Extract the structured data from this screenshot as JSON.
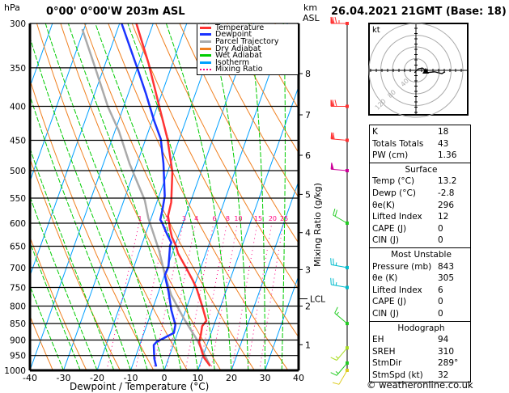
{
  "header": {
    "pressure_unit": "hPa",
    "location": "0°00' 0°00'W 203m ASL",
    "datetime": "26.04.2021 21GMT (Base: 18)",
    "km_label_1": "km",
    "km_label_2": "ASL",
    "watermark": "© weatheronline.co.uk"
  },
  "legend": [
    {
      "label": "Temperature",
      "color": "#ff3333"
    },
    {
      "label": "Dewpoint",
      "color": "#1a33ff"
    },
    {
      "label": "Parcel Trajectory",
      "color": "#aaaaaa"
    },
    {
      "label": "Dry Adiabat",
      "color": "#f08020"
    },
    {
      "label": "Wet Adiabat",
      "color": "#00cc00"
    },
    {
      "label": "Isotherm",
      "color": "#00a0ff"
    },
    {
      "label": "Mixing Ratio",
      "color": "#ff0080",
      "dotted": true
    }
  ],
  "chart_data": {
    "type": "skew-t",
    "xlabel": "Dewpoint / Temperature (°C)",
    "ylabel": "hPa",
    "xlim": [
      -40,
      40
    ],
    "ylim": [
      1000,
      300
    ],
    "x_ticks": [
      -40,
      -30,
      -20,
      -10,
      0,
      10,
      20,
      30,
      40
    ],
    "pressure_ticks": [
      300,
      350,
      400,
      450,
      500,
      550,
      600,
      650,
      700,
      750,
      800,
      850,
      900,
      950,
      1000
    ],
    "km_ticks": [
      {
        "km": "1",
        "p": 915
      },
      {
        "km": "2",
        "p": 800
      },
      {
        "km": "3",
        "p": 705
      },
      {
        "km": "4",
        "p": 620
      },
      {
        "km": "5",
        "p": 543
      },
      {
        "km": "6",
        "p": 474
      },
      {
        "km": "7",
        "p": 412
      },
      {
        "km": "8",
        "p": 357
      }
    ],
    "lcl": {
      "label": "LCL",
      "p": 780
    },
    "mixing_ratio_axis_label": "Mixing Ratio (g/kg)",
    "mixing_ratio_labels": [
      1,
      2,
      3,
      4,
      6,
      8,
      10,
      15,
      20,
      25
    ],
    "temperature": [
      [
        985,
        13.2
      ],
      [
        955,
        10.3
      ],
      [
        907,
        7.4
      ],
      [
        882,
        7.1
      ],
      [
        858,
        6.6
      ],
      [
        842,
        7.3
      ],
      [
        800,
        4.5
      ],
      [
        753,
        1.0
      ],
      [
        732,
        -1.0
      ],
      [
        701,
        -4.3
      ],
      [
        666,
        -8.3
      ],
      [
        648,
        -9.8
      ],
      [
        630,
        -11.8
      ],
      [
        610,
        -13.4
      ],
      [
        585,
        -15.2
      ],
      [
        558,
        -15.7
      ],
      [
        502,
        -18.6
      ],
      [
        448,
        -23.5
      ],
      [
        401,
        -29.3
      ],
      [
        345,
        -37.1
      ],
      [
        300,
        -45.0
      ]
    ],
    "dewpoint": [
      [
        987,
        -2.8
      ],
      [
        960,
        -4.2
      ],
      [
        916,
        -5.8
      ],
      [
        906,
        -5.3
      ],
      [
        895,
        -3.7
      ],
      [
        878,
        -1.1
      ],
      [
        854,
        -1.5
      ],
      [
        811,
        -4.3
      ],
      [
        760,
        -7.1
      ],
      [
        732,
        -9.0
      ],
      [
        718,
        -9.9
      ],
      [
        698,
        -9.7
      ],
      [
        648,
        -11.5
      ],
      [
        642,
        -11.4
      ],
      [
        624,
        -13.5
      ],
      [
        598,
        -16.4
      ],
      [
        593,
        -17.1
      ],
      [
        574,
        -17.5
      ],
      [
        546,
        -18.3
      ],
      [
        488,
        -22.1
      ],
      [
        448,
        -25.5
      ],
      [
        420,
        -29.5
      ],
      [
        383,
        -34.7
      ],
      [
        352,
        -39.7
      ],
      [
        300,
        -49.4
      ]
    ],
    "parcel": [
      [
        985,
        13.2
      ],
      [
        969,
        12.0
      ],
      [
        899,
        6.5
      ],
      [
        834,
        0.2
      ],
      [
        770,
        -5.9
      ],
      [
        718,
        -9.9
      ],
      [
        660,
        -14.2
      ],
      [
        590,
        -20.8
      ],
      [
        554,
        -23.8
      ],
      [
        488,
        -32.2
      ],
      [
        436,
        -38.8
      ],
      [
        401,
        -44.6
      ],
      [
        348,
        -52.9
      ],
      [
        306,
        -60.5
      ]
    ],
    "winds": [
      {
        "p": 300,
        "dir": 270,
        "kt": 75,
        "color": "#ff3333"
      },
      {
        "p": 400,
        "dir": 270,
        "kt": 70,
        "color": "#ff3333"
      },
      {
        "p": 450,
        "dir": 275,
        "kt": 60,
        "color": "#ff3333"
      },
      {
        "p": 500,
        "dir": 275,
        "kt": 50,
        "color": "#cc0099"
      },
      {
        "p": 600,
        "dir": 300,
        "kt": 20,
        "color": "#22cc22"
      },
      {
        "p": 700,
        "dir": 280,
        "kt": 25,
        "color": "#00bbcc"
      },
      {
        "p": 750,
        "dir": 280,
        "kt": 25,
        "color": "#00bbcc"
      },
      {
        "p": 850,
        "dir": 310,
        "kt": 15,
        "color": "#22cc22"
      },
      {
        "p": 925,
        "dir": 220,
        "kt": 15,
        "color": "#aadd22"
      },
      {
        "p": 975,
        "dir": 220,
        "kt": 15,
        "color": "#22cc22"
      },
      {
        "p": 1000,
        "dir": 210,
        "kt": 10,
        "color": "#ddcc22"
      }
    ]
  },
  "hodograph": {
    "unit": "kt",
    "ring_labels": [
      "40",
      "80",
      "120"
    ],
    "trace_uv_kt": [
      [
        -5,
        -8
      ],
      [
        8,
        5
      ],
      [
        22,
        8
      ],
      [
        33,
        0
      ],
      [
        36,
        -8
      ],
      [
        64,
        -5
      ],
      [
        89,
        -11
      ],
      [
        100,
        -5
      ]
    ]
  },
  "indices": {
    "rows": [
      {
        "k": "K",
        "v": "18"
      },
      {
        "k": "Totals Totals",
        "v": "43"
      },
      {
        "k": "PW (cm)",
        "v": "1.36"
      }
    ]
  },
  "surface": {
    "title": "Surface",
    "rows": [
      {
        "k": "Temp (°C)",
        "v": "13.2"
      },
      {
        "k": "Dewp (°C)",
        "v": "-2.8"
      },
      {
        "k": "θe(K)",
        "v": "296"
      },
      {
        "k": "Lifted Index",
        "v": "12"
      },
      {
        "k": "CAPE (J)",
        "v": "0"
      },
      {
        "k": "CIN (J)",
        "v": "0"
      }
    ]
  },
  "most_unstable": {
    "title": "Most Unstable",
    "rows": [
      {
        "k": "Pressure (mb)",
        "v": "843"
      },
      {
        "k": "θe (K)",
        "v": "305"
      },
      {
        "k": "Lifted Index",
        "v": "6"
      },
      {
        "k": "CAPE (J)",
        "v": "0"
      },
      {
        "k": "CIN (J)",
        "v": "0"
      }
    ]
  },
  "hodo_table": {
    "title": "Hodograph",
    "rows": [
      {
        "k": "EH",
        "v": "94"
      },
      {
        "k": "SREH",
        "v": "310"
      },
      {
        "k": "StmDir",
        "v": "289°"
      },
      {
        "k": "StmSpd (kt)",
        "v": "32"
      }
    ]
  }
}
